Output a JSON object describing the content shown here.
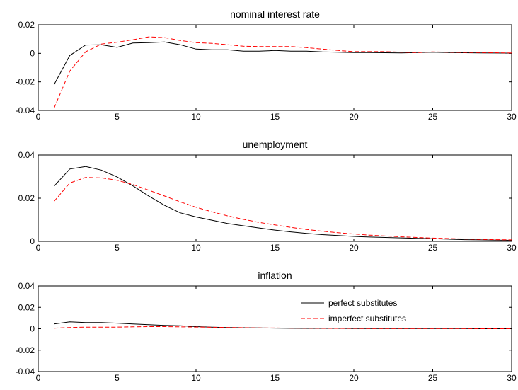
{
  "legend": {
    "entries": [
      {
        "label": "perfect substitutes",
        "color": "#000000",
        "dash": "solid"
      },
      {
        "label": "imperfect substitutes",
        "color": "#ff0000",
        "dash": "dashed"
      }
    ],
    "placement": "upper-right inside third panel"
  },
  "chart_data": [
    {
      "type": "line",
      "title": "nominal interest rate",
      "xlim": [
        0,
        30
      ],
      "ylim": [
        -0.04,
        0.02
      ],
      "xticks": [
        "0",
        "5",
        "10",
        "15",
        "20",
        "25",
        "30"
      ],
      "xtick_values": [
        0,
        5,
        10,
        15,
        20,
        25,
        30
      ],
      "yticks": [
        "-0.04",
        "-0.02",
        "0",
        "0.02"
      ],
      "ytick_values": [
        -0.04,
        -0.02,
        0,
        0.02
      ],
      "x": [
        1,
        2,
        3,
        4,
        5,
        6,
        7,
        8,
        9,
        10,
        11,
        12,
        13,
        14,
        15,
        16,
        17,
        18,
        19,
        20,
        21,
        22,
        23,
        24,
        25,
        26,
        27,
        28,
        29,
        30
      ],
      "series": [
        {
          "name": "perfect substitutes",
          "color": "#000000",
          "dash": "solid",
          "values": [
            -0.022,
            -0.0015,
            0.0058,
            0.006,
            0.0042,
            0.0072,
            0.0075,
            0.008,
            0.006,
            0.003,
            0.0025,
            0.0025,
            0.0015,
            0.0015,
            0.002,
            0.0015,
            0.0015,
            0.001,
            0.0008,
            0.0005,
            0.0005,
            0.0004,
            0.0003,
            0.0005,
            0.0008,
            0.0005,
            0.0004,
            0.0003,
            0.0002,
            0.0001
          ]
        },
        {
          "name": "imperfect substitutes",
          "color": "#ff0000",
          "dash": "dashed",
          "values": [
            -0.0385,
            -0.0125,
            0.001,
            0.0065,
            0.0078,
            0.0095,
            0.0115,
            0.011,
            0.009,
            0.0075,
            0.007,
            0.006,
            0.005,
            0.0048,
            0.0048,
            0.0048,
            0.004,
            0.003,
            0.002,
            0.0012,
            0.0012,
            0.0012,
            0.0008,
            0.0005,
            0.001,
            0.0008,
            0.0006,
            0.0005,
            0.0004,
            0.0002
          ]
        }
      ]
    },
    {
      "type": "line",
      "title": "unemployment",
      "xlim": [
        0,
        30
      ],
      "ylim": [
        0,
        0.04
      ],
      "xticks": [
        "0",
        "5",
        "10",
        "15",
        "20",
        "25",
        "30"
      ],
      "xtick_values": [
        0,
        5,
        10,
        15,
        20,
        25,
        30
      ],
      "yticks": [
        "0",
        "0.02",
        "0.04"
      ],
      "ytick_values": [
        0,
        0.02,
        0.04
      ],
      "x": [
        1,
        2,
        3,
        4,
        5,
        6,
        7,
        8,
        9,
        10,
        11,
        12,
        13,
        14,
        15,
        16,
        17,
        18,
        19,
        20,
        21,
        22,
        23,
        24,
        25,
        26,
        27,
        28,
        29,
        30
      ],
      "series": [
        {
          "name": "perfect substitutes",
          "color": "#000000",
          "dash": "solid",
          "values": [
            0.0255,
            0.0335,
            0.0347,
            0.033,
            0.0298,
            0.0257,
            0.021,
            0.0167,
            0.0132,
            0.0113,
            0.0098,
            0.0083,
            0.0072,
            0.0062,
            0.0052,
            0.0044,
            0.0037,
            0.0031,
            0.0027,
            0.0023,
            0.002,
            0.0018,
            0.0016,
            0.0014,
            0.0012,
            0.001,
            0.0008,
            0.0007,
            0.0006,
            0.0005
          ]
        },
        {
          "name": "imperfect substitutes",
          "color": "#ff0000",
          "dash": "dashed",
          "values": [
            0.0185,
            0.027,
            0.0296,
            0.0294,
            0.0283,
            0.0263,
            0.0237,
            0.021,
            0.0183,
            0.0158,
            0.0137,
            0.0118,
            0.0102,
            0.0088,
            0.0076,
            0.0065,
            0.0055,
            0.0047,
            0.004,
            0.0034,
            0.0029,
            0.0025,
            0.0021,
            0.0018,
            0.0015,
            0.0013,
            0.0011,
            0.0009,
            0.0008,
            0.0007
          ]
        }
      ]
    },
    {
      "type": "line",
      "title": "inflation",
      "xlim": [
        0,
        30
      ],
      "ylim": [
        -0.04,
        0.04
      ],
      "xticks": [
        "0",
        "5",
        "10",
        "15",
        "20",
        "25",
        "30"
      ],
      "xtick_values": [
        0,
        5,
        10,
        15,
        20,
        25,
        30
      ],
      "yticks": [
        "-0.04",
        "-0.02",
        "0",
        "0.02",
        "0.04"
      ],
      "ytick_values": [
        -0.04,
        -0.02,
        0,
        0.02,
        0.04
      ],
      "x": [
        1,
        2,
        3,
        4,
        5,
        6,
        7,
        8,
        9,
        10,
        11,
        12,
        13,
        14,
        15,
        16,
        17,
        18,
        19,
        20,
        21,
        22,
        23,
        24,
        25,
        26,
        27,
        28,
        29,
        30
      ],
      "series": [
        {
          "name": "perfect substitutes",
          "color": "#000000",
          "dash": "solid",
          "values": [
            0.0045,
            0.0065,
            0.0058,
            0.0058,
            0.0052,
            0.0045,
            0.0038,
            0.0032,
            0.0028,
            0.002,
            0.0015,
            0.0012,
            0.001,
            0.0008,
            0.0006,
            0.0004,
            0.0003,
            0.0003,
            0.0003,
            0.0002,
            0.0002,
            0.0002,
            0.0001,
            0.0001,
            0.0001,
            0.0001,
            0.0001,
            0,
            0,
            0
          ]
        },
        {
          "name": "imperfect substitutes",
          "color": "#ff0000",
          "dash": "dashed",
          "values": [
            0.0005,
            0.0012,
            0.0015,
            0.0015,
            0.0015,
            0.0018,
            0.002,
            0.002,
            0.0018,
            0.0016,
            0.0014,
            0.0012,
            0.001,
            0.0008,
            0.0007,
            0.0006,
            0.0005,
            0.0004,
            0.0003,
            0.0003,
            0.0002,
            0.0002,
            0.0002,
            0.0001,
            0.0001,
            0.0001,
            0.0001,
            0,
            0,
            0
          ]
        }
      ]
    }
  ]
}
